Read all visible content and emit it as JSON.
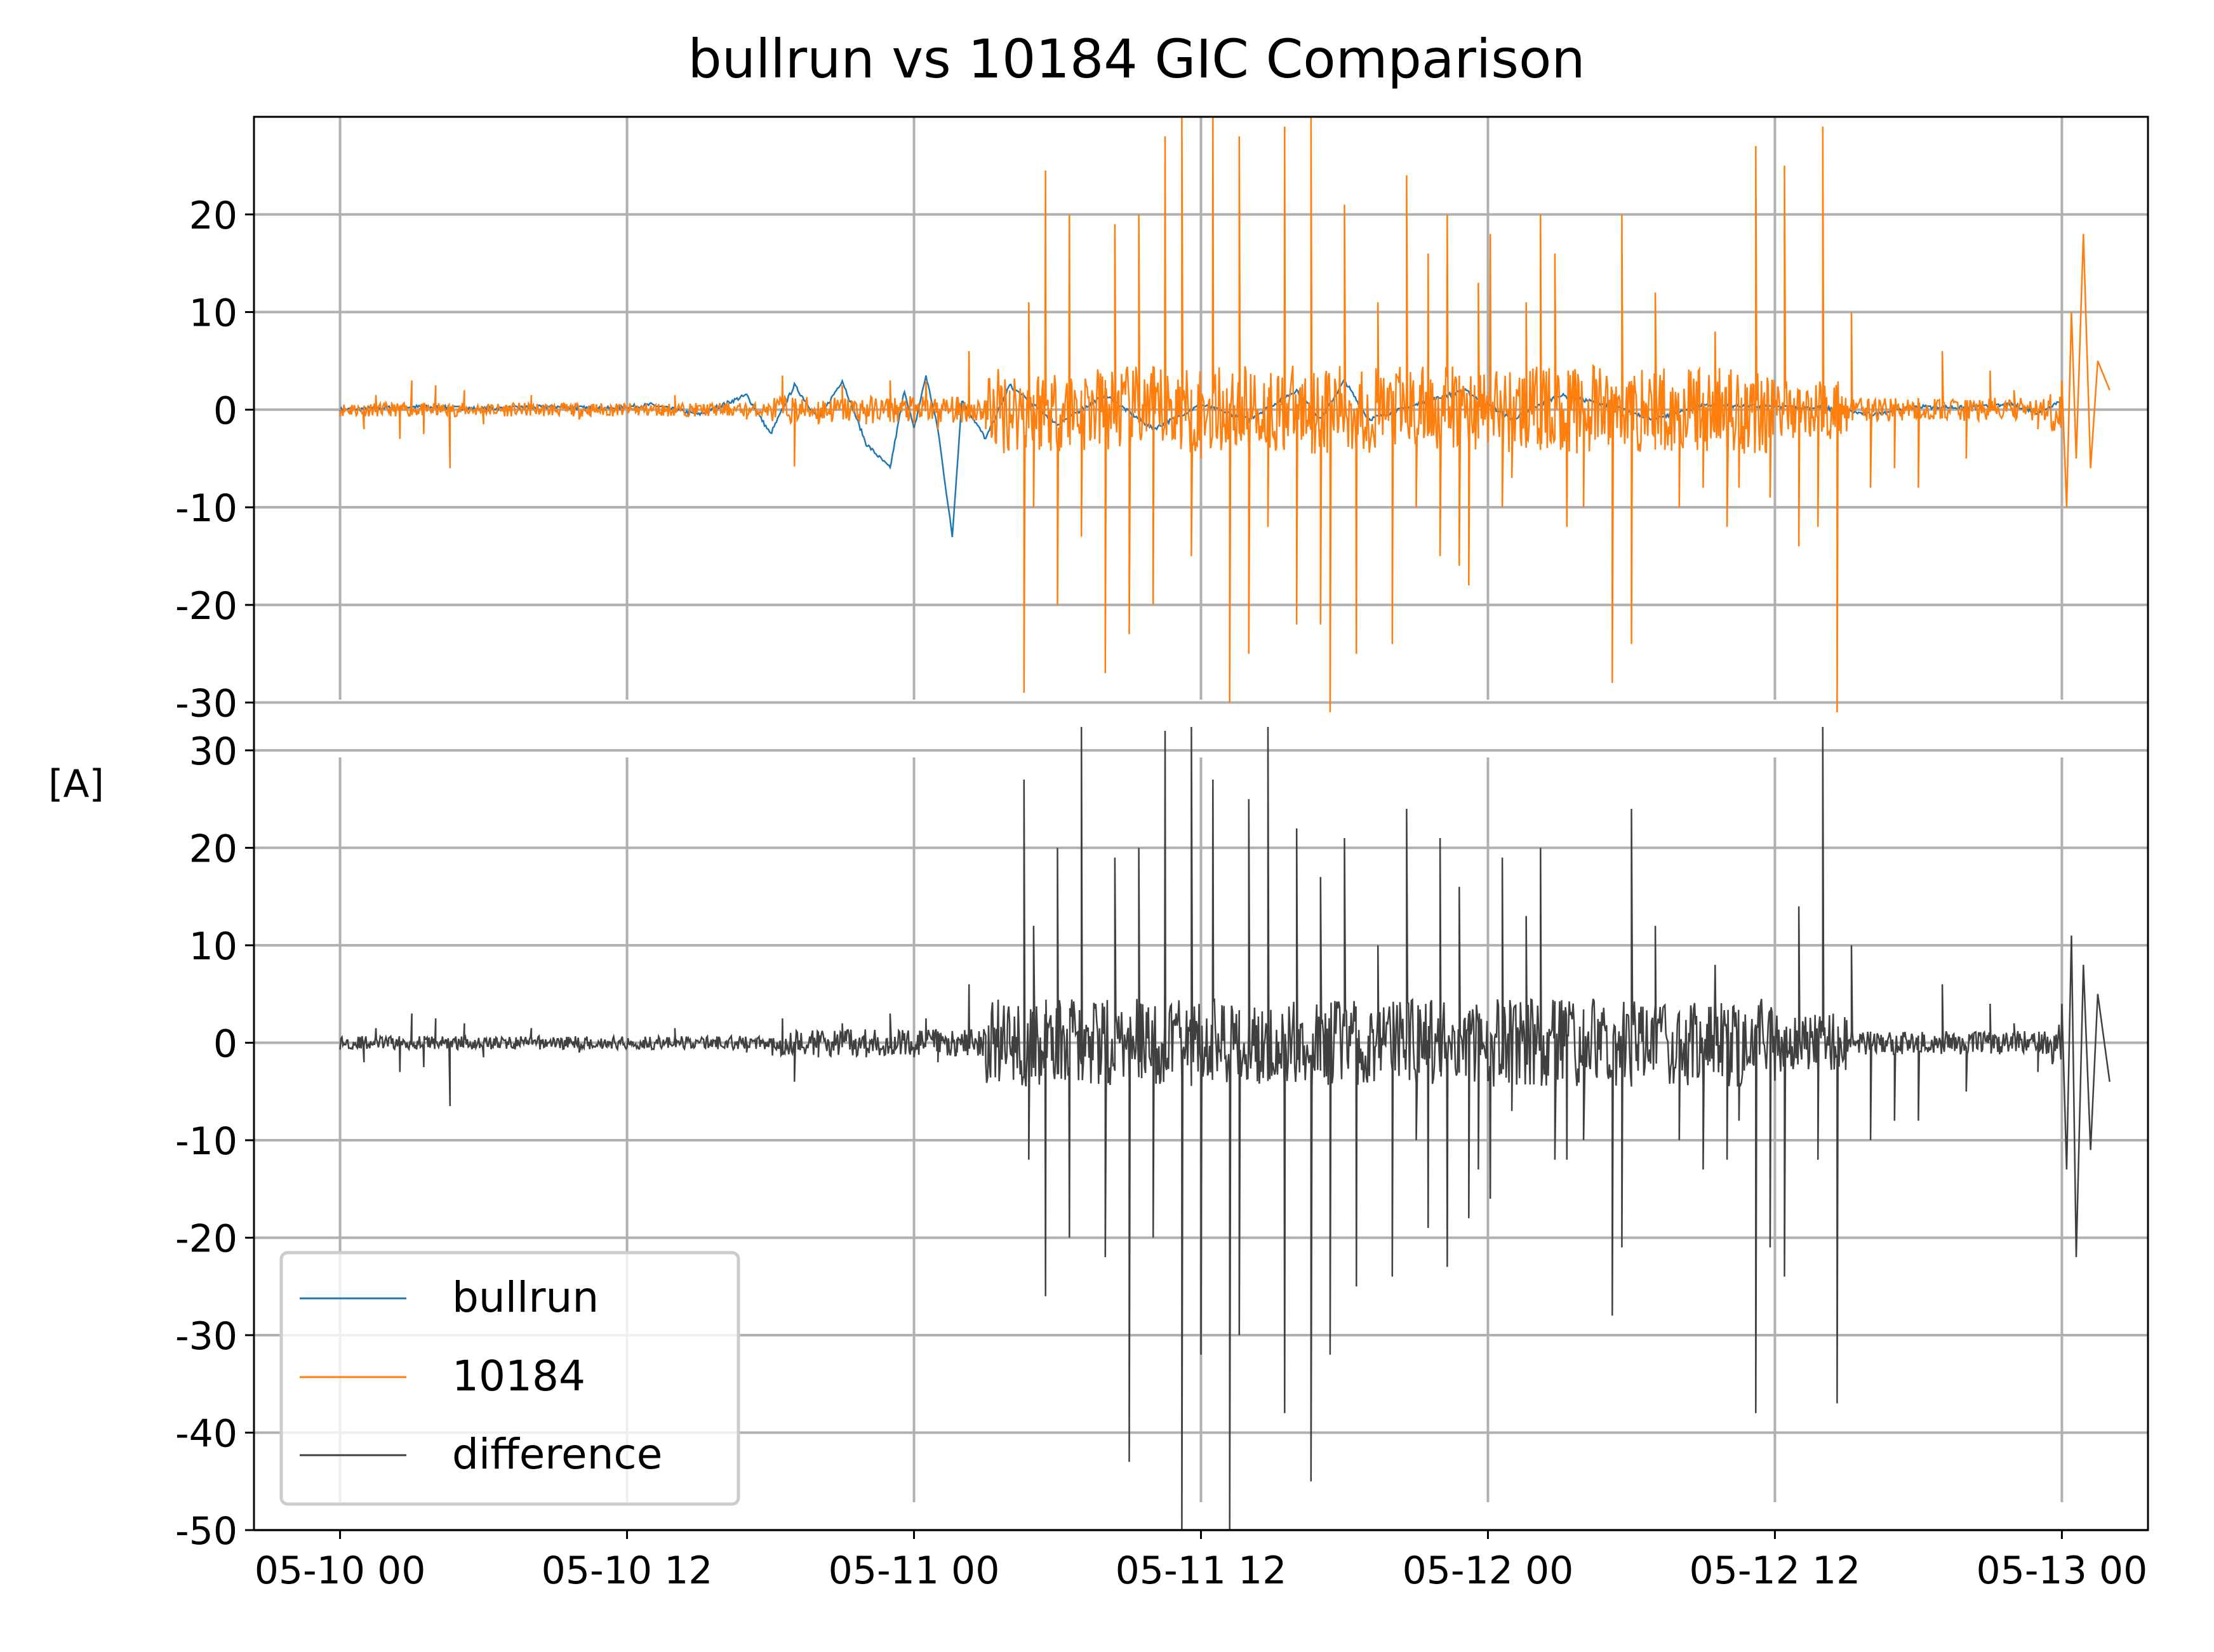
{
  "chart_data": {
    "type": "line",
    "title": "bullrun vs 10184 GIC Comparison",
    "xlabel": "",
    "ylabel": "[A]",
    "x_ticks": [
      "05-10 00",
      "05-10 12",
      "05-11 00",
      "05-11 12",
      "05-12 00",
      "05-12 12",
      "05-13 00"
    ],
    "x_range_hours": [
      -3.6,
      75.6
    ],
    "x_start_label": "05-10 00",
    "grid": true,
    "legend_position": "lower-left",
    "panels": [
      {
        "name": "top",
        "ylim": [
          -32.5,
          30.0
        ],
        "y_ticks": [
          20,
          10,
          0,
          -10,
          -20,
          -30
        ],
        "series": [
          "bullrun",
          "10184"
        ]
      },
      {
        "name": "bottom",
        "ylim": [
          -50.0,
          32.4
        ],
        "y_ticks": [
          30,
          20,
          10,
          0,
          -10,
          -20,
          -30,
          -40,
          -50
        ],
        "series": [
          "difference"
        ]
      }
    ],
    "series": [
      {
        "name": "bullrun",
        "color": "#1f77b4",
        "points": [
          [
            0,
            0
          ],
          [
            3,
            0.3
          ],
          [
            6,
            0.1
          ],
          [
            9,
            0.3
          ],
          [
            11,
            0.1
          ],
          [
            13,
            0.5
          ],
          [
            15,
            -0.5
          ],
          [
            17,
            1.5
          ],
          [
            18,
            -2.5
          ],
          [
            19,
            2.5
          ],
          [
            20,
            -1
          ],
          [
            21,
            3
          ],
          [
            22,
            -3.5
          ],
          [
            23,
            -6
          ],
          [
            23.6,
            2
          ],
          [
            24,
            -2
          ],
          [
            24.5,
            3.5
          ],
          [
            25,
            -2
          ],
          [
            25.6,
            -13
          ],
          [
            26,
            1
          ],
          [
            27,
            -3
          ],
          [
            28,
            2.5
          ],
          [
            30,
            -1.5
          ],
          [
            32,
            1.5
          ],
          [
            34,
            -2
          ],
          [
            36,
            0.5
          ],
          [
            38,
            -1
          ],
          [
            40,
            2
          ],
          [
            41,
            -1
          ],
          [
            42,
            3
          ],
          [
            43,
            -1
          ],
          [
            45,
            0.5
          ],
          [
            47,
            2
          ],
          [
            49,
            -1
          ],
          [
            51,
            1.5
          ],
          [
            53,
            0.5
          ],
          [
            55,
            -1
          ],
          [
            57,
            0.5
          ],
          [
            60,
            0.3
          ],
          [
            62,
            0.2
          ],
          [
            64,
            -0.5
          ],
          [
            66,
            0.3
          ],
          [
            68,
            0.2
          ],
          [
            70,
            0.5
          ],
          [
            71,
            -0.3
          ],
          [
            72,
            1
          ],
          [
            72.3,
            -1
          ],
          [
            72.6,
            0.5
          ],
          [
            72.9,
            2
          ],
          [
            73.5,
            1
          ]
        ]
      },
      {
        "name": "10184",
        "color": "#ff7f0e",
        "spikes": [
          [
            0.5,
            0.5
          ],
          [
            1,
            -2
          ],
          [
            1.5,
            1.5
          ],
          [
            2.5,
            -3
          ],
          [
            3,
            3
          ],
          [
            3.5,
            -2.5
          ],
          [
            4,
            2.5
          ],
          [
            4.6,
            -6
          ],
          [
            5.2,
            2
          ],
          [
            6,
            -1.5
          ],
          [
            8,
            1.5
          ],
          [
            10,
            -1
          ],
          [
            14,
            1.5
          ],
          [
            17,
            -1
          ],
          [
            18.5,
            3.5
          ],
          [
            19,
            -5.8
          ],
          [
            20,
            -1.5
          ],
          [
            21,
            2.5
          ],
          [
            22,
            -1.5
          ],
          [
            23,
            3
          ],
          [
            24,
            -1.5
          ],
          [
            24.5,
            3
          ],
          [
            25,
            -2
          ],
          [
            25.8,
            -1
          ],
          [
            26.3,
            6
          ],
          [
            27,
            -2
          ],
          [
            28,
            0
          ],
          [
            28.6,
            -29
          ],
          [
            28.8,
            11
          ],
          [
            29,
            -10
          ],
          [
            29.5,
            24.5
          ],
          [
            30,
            -20
          ],
          [
            30.5,
            20
          ],
          [
            31,
            -13
          ],
          [
            32,
            -27
          ],
          [
            32.4,
            19
          ],
          [
            33,
            -23
          ],
          [
            33.4,
            20
          ],
          [
            34,
            -20
          ],
          [
            34.5,
            28
          ],
          [
            35.2,
            30
          ],
          [
            35.6,
            -15
          ],
          [
            36,
            -5
          ],
          [
            36.5,
            31
          ],
          [
            37.2,
            -30
          ],
          [
            37.6,
            28
          ],
          [
            38,
            -25
          ],
          [
            38.8,
            -12
          ],
          [
            39.5,
            29
          ],
          [
            40,
            -22
          ],
          [
            40.6,
            31
          ],
          [
            41,
            -22
          ],
          [
            41.4,
            -31
          ],
          [
            42,
            21
          ],
          [
            42.5,
            -25
          ],
          [
            43.4,
            11
          ],
          [
            44,
            -24
          ],
          [
            44.6,
            24
          ],
          [
            45,
            -10
          ],
          [
            45.5,
            16
          ],
          [
            46,
            -15
          ],
          [
            46.3,
            20
          ],
          [
            46.8,
            -16
          ],
          [
            47.2,
            -18
          ],
          [
            47.6,
            13
          ],
          [
            48.1,
            18
          ],
          [
            48.6,
            -10
          ],
          [
            49,
            -7
          ],
          [
            49.6,
            11
          ],
          [
            50.2,
            20
          ],
          [
            50.8,
            16
          ],
          [
            51.3,
            -12
          ],
          [
            52,
            -10
          ],
          [
            53.2,
            -28
          ],
          [
            53.6,
            20
          ],
          [
            54,
            -24
          ],
          [
            55,
            12
          ],
          [
            56,
            -10
          ],
          [
            57,
            -8
          ],
          [
            57.5,
            8
          ],
          [
            58,
            -12
          ],
          [
            58.5,
            -8
          ],
          [
            59.2,
            27
          ],
          [
            59.8,
            -9
          ],
          [
            60.4,
            25
          ],
          [
            61,
            -14
          ],
          [
            61.8,
            -12
          ],
          [
            62,
            29
          ],
          [
            62.6,
            -31
          ],
          [
            63.2,
            10
          ],
          [
            64,
            -8
          ],
          [
            65,
            -6
          ],
          [
            66,
            -8
          ],
          [
            67,
            6
          ],
          [
            68,
            -5
          ],
          [
            69,
            4
          ],
          [
            70,
            2
          ],
          [
            71,
            -2
          ],
          [
            72,
            3
          ],
          [
            72.2,
            -10
          ],
          [
            72.4,
            10
          ],
          [
            72.6,
            -5
          ],
          [
            72.9,
            18
          ],
          [
            73.2,
            -6
          ],
          [
            73.5,
            5
          ],
          [
            74,
            2
          ]
        ]
      },
      {
        "name": "difference",
        "color": "#404040",
        "spikes": [
          [
            0.5,
            -0.5
          ],
          [
            1,
            -2
          ],
          [
            1.5,
            1.5
          ],
          [
            2.5,
            -3
          ],
          [
            3,
            3
          ],
          [
            3.5,
            -2.5
          ],
          [
            4,
            2.5
          ],
          [
            4.6,
            -6.5
          ],
          [
            5.2,
            2
          ],
          [
            6,
            -1.5
          ],
          [
            8,
            1.5
          ],
          [
            10,
            -1
          ],
          [
            14,
            1.5
          ],
          [
            17,
            -1
          ],
          [
            18.5,
            2.5
          ],
          [
            19,
            -4
          ],
          [
            20,
            -1.5
          ],
          [
            21,
            2
          ],
          [
            22,
            -1.5
          ],
          [
            23,
            3
          ],
          [
            24,
            -1.5
          ],
          [
            24.5,
            2.5
          ],
          [
            25,
            -2
          ],
          [
            25.8,
            -1
          ],
          [
            26.3,
            6
          ],
          [
            27,
            -2
          ],
          [
            28,
            0
          ],
          [
            28.6,
            27
          ],
          [
            28.8,
            -12
          ],
          [
            29,
            12
          ],
          [
            29.5,
            -26
          ],
          [
            30,
            20
          ],
          [
            30.5,
            -20
          ],
          [
            31,
            33
          ],
          [
            32,
            -22
          ],
          [
            32.4,
            19
          ],
          [
            33,
            -43
          ],
          [
            33.4,
            20
          ],
          [
            34,
            -20
          ],
          [
            34.5,
            32
          ],
          [
            35.2,
            -50
          ],
          [
            35.6,
            33
          ],
          [
            36,
            -32
          ],
          [
            36.5,
            27
          ],
          [
            37.2,
            -50
          ],
          [
            37.6,
            -30
          ],
          [
            38,
            25
          ],
          [
            38.8,
            35
          ],
          [
            39.5,
            -38
          ],
          [
            40,
            22
          ],
          [
            40.6,
            -45
          ],
          [
            41,
            17
          ],
          [
            41.4,
            -32
          ],
          [
            42,
            21
          ],
          [
            42.5,
            -25
          ],
          [
            43.4,
            10
          ],
          [
            44,
            -24
          ],
          [
            44.6,
            24
          ],
          [
            45,
            -10
          ],
          [
            45.5,
            -19
          ],
          [
            46,
            21
          ],
          [
            46.3,
            -23
          ],
          [
            46.8,
            16
          ],
          [
            47.2,
            -18
          ],
          [
            47.6,
            -13
          ],
          [
            48.1,
            -16
          ],
          [
            48.6,
            19
          ],
          [
            49,
            -7
          ],
          [
            49.6,
            13
          ],
          [
            50.2,
            20
          ],
          [
            50.8,
            -12
          ],
          [
            51.3,
            -12
          ],
          [
            52,
            -10
          ],
          [
            53.2,
            -28
          ],
          [
            53.6,
            -21
          ],
          [
            54,
            24
          ],
          [
            55,
            12
          ],
          [
            56,
            -10
          ],
          [
            57,
            -13
          ],
          [
            57.5,
            8
          ],
          [
            58,
            -12
          ],
          [
            58.5,
            -8
          ],
          [
            59.2,
            -38
          ],
          [
            59.8,
            -21
          ],
          [
            60.4,
            -24
          ],
          [
            61,
            14
          ],
          [
            61.8,
            -12
          ],
          [
            62,
            33
          ],
          [
            62.6,
            -37
          ],
          [
            63.2,
            10
          ],
          [
            64,
            -10
          ],
          [
            65,
            -8
          ],
          [
            66,
            -8
          ],
          [
            67,
            6
          ],
          [
            68,
            -5
          ],
          [
            69,
            4
          ],
          [
            70,
            2
          ],
          [
            71,
            -3
          ],
          [
            72,
            4
          ],
          [
            72.2,
            -13
          ],
          [
            72.4,
            11
          ],
          [
            72.6,
            -22
          ],
          [
            72.9,
            8
          ],
          [
            73.2,
            -11
          ],
          [
            73.5,
            5
          ],
          [
            74,
            -4
          ]
        ]
      }
    ]
  }
}
